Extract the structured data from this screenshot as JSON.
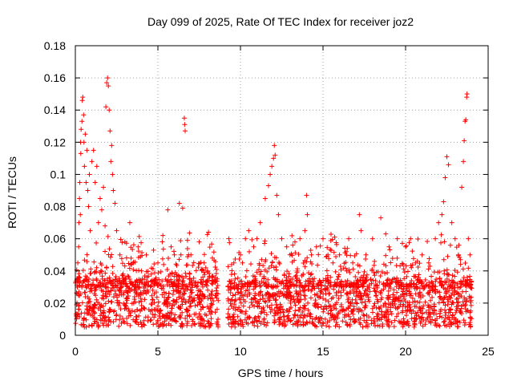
{
  "chart_data": {
    "type": "scatter",
    "title": "Day 099 of 2025, Rate Of TEC Index for receiver joz2",
    "xlabel": "GPS time / hours",
    "ylabel": "ROTI / TECUs",
    "xlim": [
      0,
      25
    ],
    "ylim": [
      0,
      0.18
    ],
    "x_ticks": [
      0,
      5,
      10,
      15,
      20,
      25
    ],
    "x_tick_labels": [
      "0",
      "5",
      "10",
      "15",
      "20",
      "25"
    ],
    "y_ticks": [
      0,
      0.02,
      0.04,
      0.06,
      0.08,
      0.1,
      0.12,
      0.14,
      0.16,
      0.18
    ],
    "y_tick_labels": [
      "0",
      "0.02",
      "0.04",
      "0.06",
      "0.08",
      "0.1",
      "0.12",
      "0.14",
      "0.16",
      "0.18"
    ],
    "grid": true,
    "marker": "+",
    "marker_color": "#ff0000",
    "data_gap_hours": [
      8.7,
      9.2
    ],
    "series": [
      {
        "points": [
          [
            0.05,
            0.012
          ],
          [
            0.1,
            0.02
          ],
          [
            0.12,
            0.03
          ],
          [
            0.15,
            0.045
          ],
          [
            0.2,
            0.055
          ],
          [
            0.22,
            0.07
          ],
          [
            0.25,
            0.085
          ],
          [
            0.27,
            0.095
          ],
          [
            0.3,
            0.075
          ],
          [
            0.32,
            0.12
          ],
          [
            0.33,
            0.113
          ],
          [
            0.35,
            0.128
          ],
          [
            0.4,
            0.133
          ],
          [
            0.42,
            0.146
          ],
          [
            0.45,
            0.148
          ],
          [
            0.5,
            0.137
          ],
          [
            0.52,
            0.12
          ],
          [
            0.55,
            0.105
          ],
          [
            0.6,
            0.125
          ],
          [
            0.65,
            0.095
          ],
          [
            0.7,
            0.115
          ],
          [
            0.75,
            0.09
          ],
          [
            0.8,
            0.08
          ],
          [
            0.85,
            0.1
          ],
          [
            0.9,
            0.065
          ],
          [
            1.0,
            0.108
          ],
          [
            1.1,
            0.115
          ],
          [
            1.2,
            0.095
          ],
          [
            1.3,
            0.105
          ],
          [
            1.4,
            0.07
          ],
          [
            1.5,
            0.085
          ],
          [
            1.6,
            0.078
          ],
          [
            1.7,
            0.092
          ],
          [
            1.8,
            0.068
          ],
          [
            1.85,
            0.142
          ],
          [
            1.9,
            0.157
          ],
          [
            1.95,
            0.16
          ],
          [
            2.0,
            0.155
          ],
          [
            2.05,
            0.14
          ],
          [
            2.1,
            0.127
          ],
          [
            2.15,
            0.108
          ],
          [
            2.2,
            0.118
          ],
          [
            2.25,
            0.1
          ],
          [
            2.3,
            0.09
          ],
          [
            2.4,
            0.082
          ],
          [
            2.5,
            0.065
          ],
          [
            2.7,
            0.05
          ],
          [
            3.0,
            0.058
          ],
          [
            3.3,
            0.07
          ],
          [
            3.5,
            0.045
          ],
          [
            3.8,
            0.055
          ],
          [
            4.0,
            0.04
          ],
          [
            4.3,
            0.05
          ],
          [
            4.6,
            0.038
          ],
          [
            5.0,
            0.045
          ],
          [
            5.3,
            0.062
          ],
          [
            5.6,
            0.078
          ],
          [
            5.8,
            0.055
          ],
          [
            6.0,
            0.05
          ],
          [
            6.3,
            0.082
          ],
          [
            6.5,
            0.079
          ],
          [
            6.6,
            0.135
          ],
          [
            6.62,
            0.131
          ],
          [
            6.65,
            0.127
          ],
          [
            7.0,
            0.05
          ],
          [
            7.5,
            0.058
          ],
          [
            7.8,
            0.045
          ],
          [
            8.0,
            0.04
          ],
          [
            8.3,
            0.048
          ],
          [
            8.6,
            0.035
          ],
          [
            9.3,
            0.06
          ],
          [
            9.6,
            0.045
          ],
          [
            10.0,
            0.05
          ],
          [
            10.3,
            0.06
          ],
          [
            10.5,
            0.065
          ],
          [
            10.8,
            0.055
          ],
          [
            11.0,
            0.06
          ],
          [
            11.2,
            0.07
          ],
          [
            11.5,
            0.085
          ],
          [
            11.7,
            0.093
          ],
          [
            11.8,
            0.1
          ],
          [
            11.9,
            0.105
          ],
          [
            12.0,
            0.11
          ],
          [
            12.05,
            0.118
          ],
          [
            12.1,
            0.112
          ],
          [
            12.2,
            0.087
          ],
          [
            12.3,
            0.075
          ],
          [
            12.5,
            0.06
          ],
          [
            12.8,
            0.055
          ],
          [
            13.0,
            0.05
          ],
          [
            13.3,
            0.058
          ],
          [
            13.6,
            0.06
          ],
          [
            13.9,
            0.065
          ],
          [
            14.0,
            0.087
          ],
          [
            14.05,
            0.075
          ],
          [
            14.3,
            0.05
          ],
          [
            14.6,
            0.055
          ],
          [
            15.0,
            0.06
          ],
          [
            15.3,
            0.05
          ],
          [
            15.6,
            0.045
          ],
          [
            16.0,
            0.05
          ],
          [
            16.4,
            0.052
          ],
          [
            16.8,
            0.045
          ],
          [
            17.2,
            0.075
          ],
          [
            17.3,
            0.065
          ],
          [
            17.6,
            0.05
          ],
          [
            18.0,
            0.06
          ],
          [
            18.5,
            0.073
          ],
          [
            18.8,
            0.063
          ],
          [
            19.0,
            0.055
          ],
          [
            19.5,
            0.06
          ],
          [
            20.0,
            0.055
          ],
          [
            20.3,
            0.06
          ],
          [
            20.6,
            0.045
          ],
          [
            21.0,
            0.05
          ],
          [
            21.4,
            0.045
          ],
          [
            21.8,
            0.06
          ],
          [
            22.0,
            0.07
          ],
          [
            22.2,
            0.075
          ],
          [
            22.3,
            0.083
          ],
          [
            22.4,
            0.098
          ],
          [
            22.5,
            0.111
          ],
          [
            22.6,
            0.106
          ],
          [
            22.8,
            0.07
          ],
          [
            23.0,
            0.06
          ],
          [
            23.2,
            0.05
          ],
          [
            23.4,
            0.092
          ],
          [
            23.5,
            0.108
          ],
          [
            23.55,
            0.121
          ],
          [
            23.6,
            0.133
          ],
          [
            23.65,
            0.134
          ],
          [
            23.7,
            0.148
          ],
          [
            23.72,
            0.15
          ],
          [
            23.8,
            0.06
          ],
          [
            23.9,
            0.05
          ]
        ],
        "baseline_band": [
          0.005,
          0.035
        ]
      }
    ]
  }
}
